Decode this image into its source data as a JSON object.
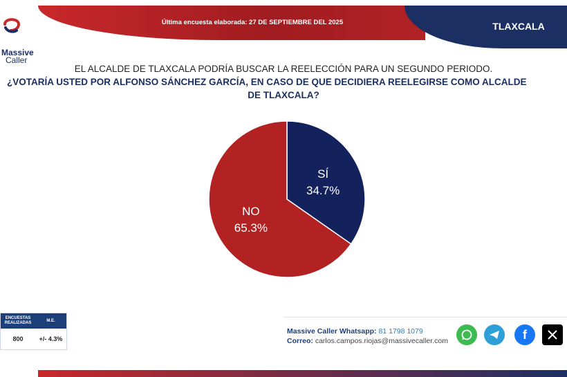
{
  "header": {
    "date_text": "Última encuesta elaborada: 27 DE SEPTIEMBRE DEL 2025",
    "region": "TLAXCALA"
  },
  "brand": {
    "name_line1": "Massive",
    "name_line2": "Caller"
  },
  "question": {
    "line1": "EL ALCALDE DE TLAXCALA PODRÍA BUSCAR LA REELECCIÓN PARA UN SEGUNDO PERIODO.",
    "line2": "¿VOTARÍA USTED POR ALFONSO SÁNCHEZ GARCÍA, EN CASO DE QUE DECIDIERA REELEGIRSE COMO ALCALDE",
    "line3": "DE TLAXCALA?"
  },
  "stats": {
    "col1_header": "ENCUESTAS REALIZADAS",
    "col2_header": "M.E.",
    "col1_value": "800",
    "col2_value": "+/- 4.3%"
  },
  "contact": {
    "whatsapp_label": "Massive Caller Whatsapp:",
    "whatsapp_value": "81 1798 1079",
    "email_label": "Correo:",
    "email_value": "carlos.campos.riojas@massivecaller.com"
  },
  "colors": {
    "red": "#b22222",
    "navy": "#13225c"
  },
  "chart_data": {
    "type": "pie",
    "slices": [
      {
        "label": "SÍ",
        "value": 34.7,
        "value_label": "34.7%",
        "color": "#13225c"
      },
      {
        "label": "NO",
        "value": 65.3,
        "value_label": "65.3%",
        "color": "#b22222"
      }
    ]
  }
}
